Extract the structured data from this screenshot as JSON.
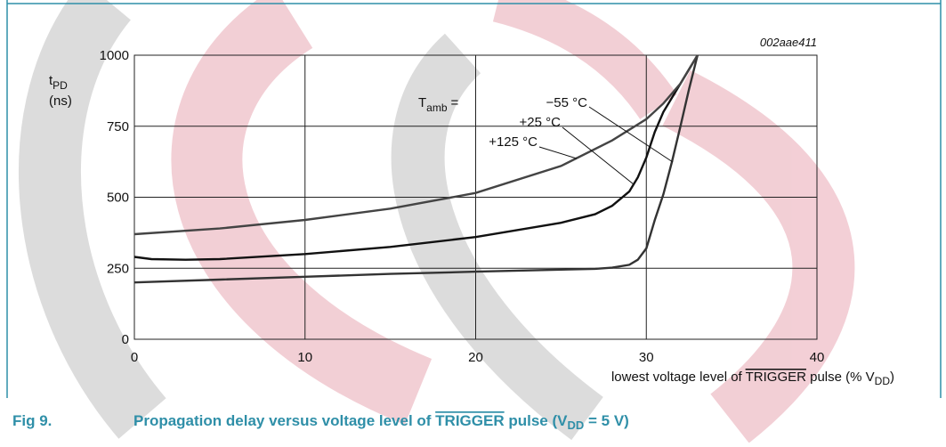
{
  "chart_data": {
    "type": "line",
    "annotation": "002aae411",
    "y_label": {
      "main": "t",
      "sub": "PD",
      "unit": "(ns)"
    },
    "x_label": {
      "pre": "lowest voltage level of ",
      "over": "TRIGGER",
      "mid": " pulse (% V",
      "sub": "DD",
      "post": ")"
    },
    "legend_prefix": {
      "main": "T",
      "sub": "amb",
      "eq": "="
    },
    "caption": {
      "number": "Fig 9.",
      "pre": "Propagation delay versus voltage level of ",
      "over": "TRIGGER",
      "mid": " pulse (V",
      "sub": "DD",
      "post": " = 5 V)"
    },
    "xlim": [
      0,
      40
    ],
    "xticks": [
      0,
      10,
      20,
      30,
      40
    ],
    "ylim": [
      0,
      1000
    ],
    "yticks": [
      0,
      250,
      500,
      750,
      1000
    ],
    "grid": true,
    "series": [
      {
        "name": "−55 °C",
        "color": "#333333",
        "x": [
          0,
          5,
          10,
          15,
          20,
          25,
          27,
          28,
          29,
          29.5,
          30,
          30.5,
          31,
          31.5,
          32,
          32.5,
          33
        ],
        "values": [
          200,
          210,
          220,
          230,
          238,
          245,
          248,
          252,
          262,
          280,
          320,
          420,
          510,
          624,
          750,
          880,
          1000
        ]
      },
      {
        "name": "+25 °C",
        "color": "#111111",
        "x": [
          0,
          1,
          3,
          5,
          10,
          15,
          20,
          25,
          27,
          28,
          29,
          29.5,
          30,
          30.5,
          31,
          32,
          33
        ],
        "values": [
          290,
          282,
          280,
          282,
          300,
          325,
          360,
          410,
          440,
          470,
          520,
          570,
          640,
          730,
          800,
          900,
          1000
        ]
      },
      {
        "name": "+125 °C",
        "color": "#444444",
        "x": [
          0,
          5,
          10,
          15,
          20,
          25,
          28,
          30,
          31,
          32,
          33
        ],
        "values": [
          370,
          390,
          420,
          460,
          515,
          610,
          700,
          775,
          830,
          900,
          1000
        ]
      }
    ]
  }
}
